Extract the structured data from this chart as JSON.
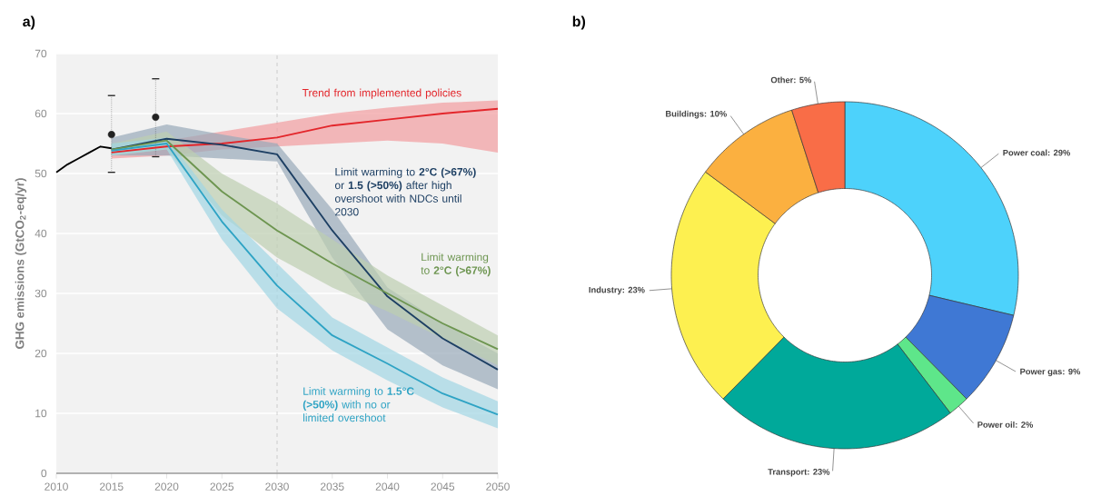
{
  "chart_data": [
    {
      "type": "line",
      "title": "a)",
      "ylabel": "GHG emissions (GtCO$_{2}$-eq/yr)",
      "xlim": [
        2010,
        2050
      ],
      "ylim": [
        0,
        70
      ],
      "xticks": [
        2010,
        2015,
        2020,
        2025,
        2030,
        2035,
        2040,
        2045,
        2050
      ],
      "yticks": [
        0,
        10,
        20,
        30,
        40,
        50,
        60,
        70
      ],
      "grid": "y",
      "ref_lines": [
        {
          "axis": "x",
          "value": 2030,
          "color": "#aaaaaa",
          "line_style": "dashed"
        }
      ],
      "series": [
        {
          "type": "line",
          "color": "#000000",
          "x": [
            2010,
            2011,
            2012,
            2013,
            2014,
            2015
          ],
          "values": [
            50.2,
            51.5,
            52.5,
            53.5,
            54.5,
            54.2
          ]
        },
        {
          "type": "scatter",
          "color": "#222222",
          "x": [
            2015,
            2019
          ],
          "values": [
            56.5,
            59.4
          ],
          "errors": [
            [
              50.2,
              63
            ],
            [
              52.8,
              65.8
            ]
          ],
          "line_style": "dotted"
        },
        {
          "type": "line",
          "name": "Trend from implemented policies",
          "color": "#e3262b",
          "x": [
            2015,
            2020,
            2025,
            2030,
            2035,
            2040,
            2045,
            2050
          ],
          "values": [
            53.5,
            54.5,
            55,
            56,
            58,
            59,
            60,
            60.8
          ],
          "lower": [
            52.5,
            53,
            54,
            54.5,
            55,
            55.5,
            55,
            53.5
          ],
          "upper": [
            54,
            55.5,
            57,
            58.5,
            60,
            61,
            61.8,
            62.2
          ]
        },
        {
          "type": "line",
          "name": "Limit warming to **2°C (>67%)** or **1.5 (>50%)** after high overshoot with NDCs until 2030",
          "color": "#1d3f63",
          "x": [
            2015,
            2020,
            2025,
            2030,
            2035,
            2040,
            2045,
            2050
          ],
          "values": [
            54,
            55.8,
            54.8,
            53.2,
            40.5,
            29.5,
            22.5,
            17.3
          ],
          "lower": [
            53,
            53,
            52.5,
            52,
            36,
            24,
            18,
            14
          ],
          "upper": [
            56,
            58.2,
            56.5,
            55,
            44,
            31,
            25,
            20
          ]
        },
        {
          "type": "line",
          "name": "Limit warming to **2°C (>67%)**",
          "color": "#6d9550",
          "x": [
            2015,
            2020,
            2025,
            2030,
            2035,
            2040,
            2045,
            2050
          ],
          "values": [
            54,
            55.5,
            47,
            40.5,
            35,
            30,
            25,
            20.7
          ],
          "lower": [
            53,
            54,
            43,
            36,
            31,
            27,
            22.5,
            18
          ],
          "upper": [
            55,
            57,
            50,
            45,
            39,
            33,
            28,
            23
          ]
        },
        {
          "type": "line",
          "name": "Limit warming to **1.5°C (>50%)** with no or limited overshoot",
          "color": "#2ea3c4",
          "x": [
            2015,
            2020,
            2025,
            2030,
            2035,
            2040,
            2045,
            2050
          ],
          "values": [
            53.8,
            55,
            42,
            31.3,
            23,
            18.3,
            13.3,
            9.8
          ],
          "lower": [
            53,
            54,
            39,
            27.5,
            20.5,
            15.5,
            11,
            7.5
          ],
          "upper": [
            55,
            56,
            44,
            35,
            26,
            21,
            16,
            12
          ]
        }
      ]
    },
    {
      "type": "donut",
      "title": "b)",
      "categories": [
        "Power coal: 29%",
        "Power gas: 9%",
        "Power oil: 2%",
        "Transport: 23%",
        "Industry: 23%",
        "Buildings: 10%",
        "Other: 5%"
      ],
      "values": [
        29,
        9,
        2,
        23,
        23,
        10,
        5
      ],
      "colors": [
        "#4dd2fb",
        "#3f78d4",
        "#5ee68a",
        "#00a99a",
        "#fdf050",
        "#fbb040",
        "#f96d47"
      ]
    }
  ]
}
